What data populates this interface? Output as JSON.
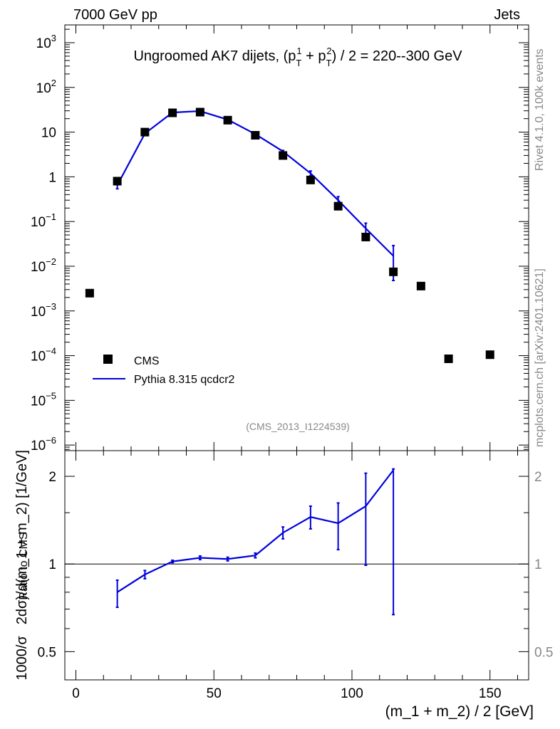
{
  "header": {
    "left": "7000 GeV pp",
    "right": "Jets"
  },
  "side_text": {
    "top": "Rivet 4.1.0,  100k events",
    "bottom": "mcplots.cern.ch [arXiv:2401.10621]"
  },
  "watermark": "(CMS_2013_I1224539)",
  "colors": {
    "mc": "#0000dd",
    "data": "#000000",
    "side": "#888888"
  },
  "chart_data": [
    {
      "type": "scatter",
      "panel": "main",
      "title": "Ungroomed AK7 dijets, (p_T^1 + p_T^2) / 2 = 220--300 GeV",
      "title_parts": {
        "pre": "Ungroomed AK7 dijets, (p",
        "sub1": "T",
        "sup1": "1",
        "plus": " + p",
        "sub2": "T",
        "sup2": "2",
        "post": ") / 2 = 220--300 GeV"
      },
      "ylabel": "1000/σ  2dσ)/d(m_1 + m_2) [1/GeV]",
      "ylabel_parts": {
        "a": "1000/σ",
        "b": "2dσ)/d(m_1 + m_2) [1/GeV]"
      },
      "yscale": "log",
      "xlim": [
        -4,
        164
      ],
      "ylim": [
        7.5e-07,
        2500
      ],
      "xticks": [
        0,
        50,
        100,
        150
      ],
      "yticks": [
        {
          "value": 1000,
          "base": "10",
          "exp": "3"
        },
        {
          "value": 100,
          "base": "10",
          "exp": "2"
        },
        {
          "value": 10,
          "base": "10",
          "exp": ""
        },
        {
          "value": 1,
          "base": "1",
          "exp": ""
        },
        {
          "value": 0.1,
          "base": "10",
          "exp": "−1"
        },
        {
          "value": 0.01,
          "base": "10",
          "exp": "−2"
        },
        {
          "value": 0.001,
          "base": "10",
          "exp": "−3"
        },
        {
          "value": 0.0001,
          "base": "10",
          "exp": "−4"
        },
        {
          "value": 1e-05,
          "base": "10",
          "exp": "−5"
        },
        {
          "value": 1e-06,
          "base": "10",
          "exp": "−6"
        }
      ],
      "legend": {
        "placement": "bottom-left",
        "entries": [
          "CMS",
          "Pythia 8.315 qcdcr2"
        ]
      },
      "series": [
        {
          "name": "CMS",
          "kind": "markers",
          "x": [
            5,
            15,
            25,
            35,
            45,
            55,
            65,
            75,
            85,
            95,
            105,
            115,
            125,
            135,
            150
          ],
          "y": [
            0.0025,
            0.8,
            10,
            27,
            28,
            18.5,
            8.5,
            3.0,
            0.85,
            0.22,
            0.045,
            0.0075,
            0.0036,
            8.5e-05,
            0.000105
          ]
        },
        {
          "name": "Pythia 8.315 qcdcr2",
          "kind": "line",
          "x": [
            15,
            25,
            35,
            45,
            55,
            65,
            75,
            85,
            95,
            105,
            115
          ],
          "y": [
            0.65,
            9.3,
            27.5,
            29.5,
            19.0,
            9.0,
            3.7,
            1.2,
            0.3,
            0.07,
            0.017
          ],
          "err_lo": [
            0.54,
            9.0,
            27.0,
            29.0,
            18.7,
            8.8,
            3.55,
            1.05,
            0.25,
            0.048,
            0.0048
          ],
          "err_hi": [
            0.76,
            9.6,
            28.0,
            30.0,
            19.3,
            9.2,
            3.9,
            1.35,
            0.36,
            0.092,
            0.029
          ]
        }
      ]
    },
    {
      "type": "line",
      "panel": "ratio",
      "ylabel": "Ratio to CMS",
      "yscale": "log",
      "xlim": [
        -4,
        164
      ],
      "ylim": [
        0.4,
        2.45
      ],
      "xlabel": "(m_1 + m_2) / 2 [GeV]",
      "xticks": [
        0,
        50,
        100,
        150
      ],
      "yticks": [
        {
          "value": 0.5,
          "label": "0.5"
        },
        {
          "value": 1,
          "label": "1"
        },
        {
          "value": 2,
          "label": "2"
        }
      ],
      "reference": 1,
      "series": [
        {
          "name": "Pythia 8.315 qcdcr2 / CMS",
          "x": [
            15,
            25,
            35,
            45,
            55,
            65,
            75,
            85,
            95,
            105,
            115
          ],
          "y": [
            0.8,
            0.92,
            1.02,
            1.05,
            1.04,
            1.07,
            1.28,
            1.45,
            1.38,
            1.58,
            2.1
          ],
          "err_lo": [
            0.71,
            0.89,
            1.01,
            1.035,
            1.025,
            1.05,
            1.22,
            1.32,
            1.12,
            0.99,
            0.67
          ],
          "err_hi": [
            0.88,
            0.95,
            1.03,
            1.065,
            1.055,
            1.09,
            1.34,
            1.58,
            1.62,
            2.05,
            2.12
          ]
        }
      ]
    }
  ]
}
